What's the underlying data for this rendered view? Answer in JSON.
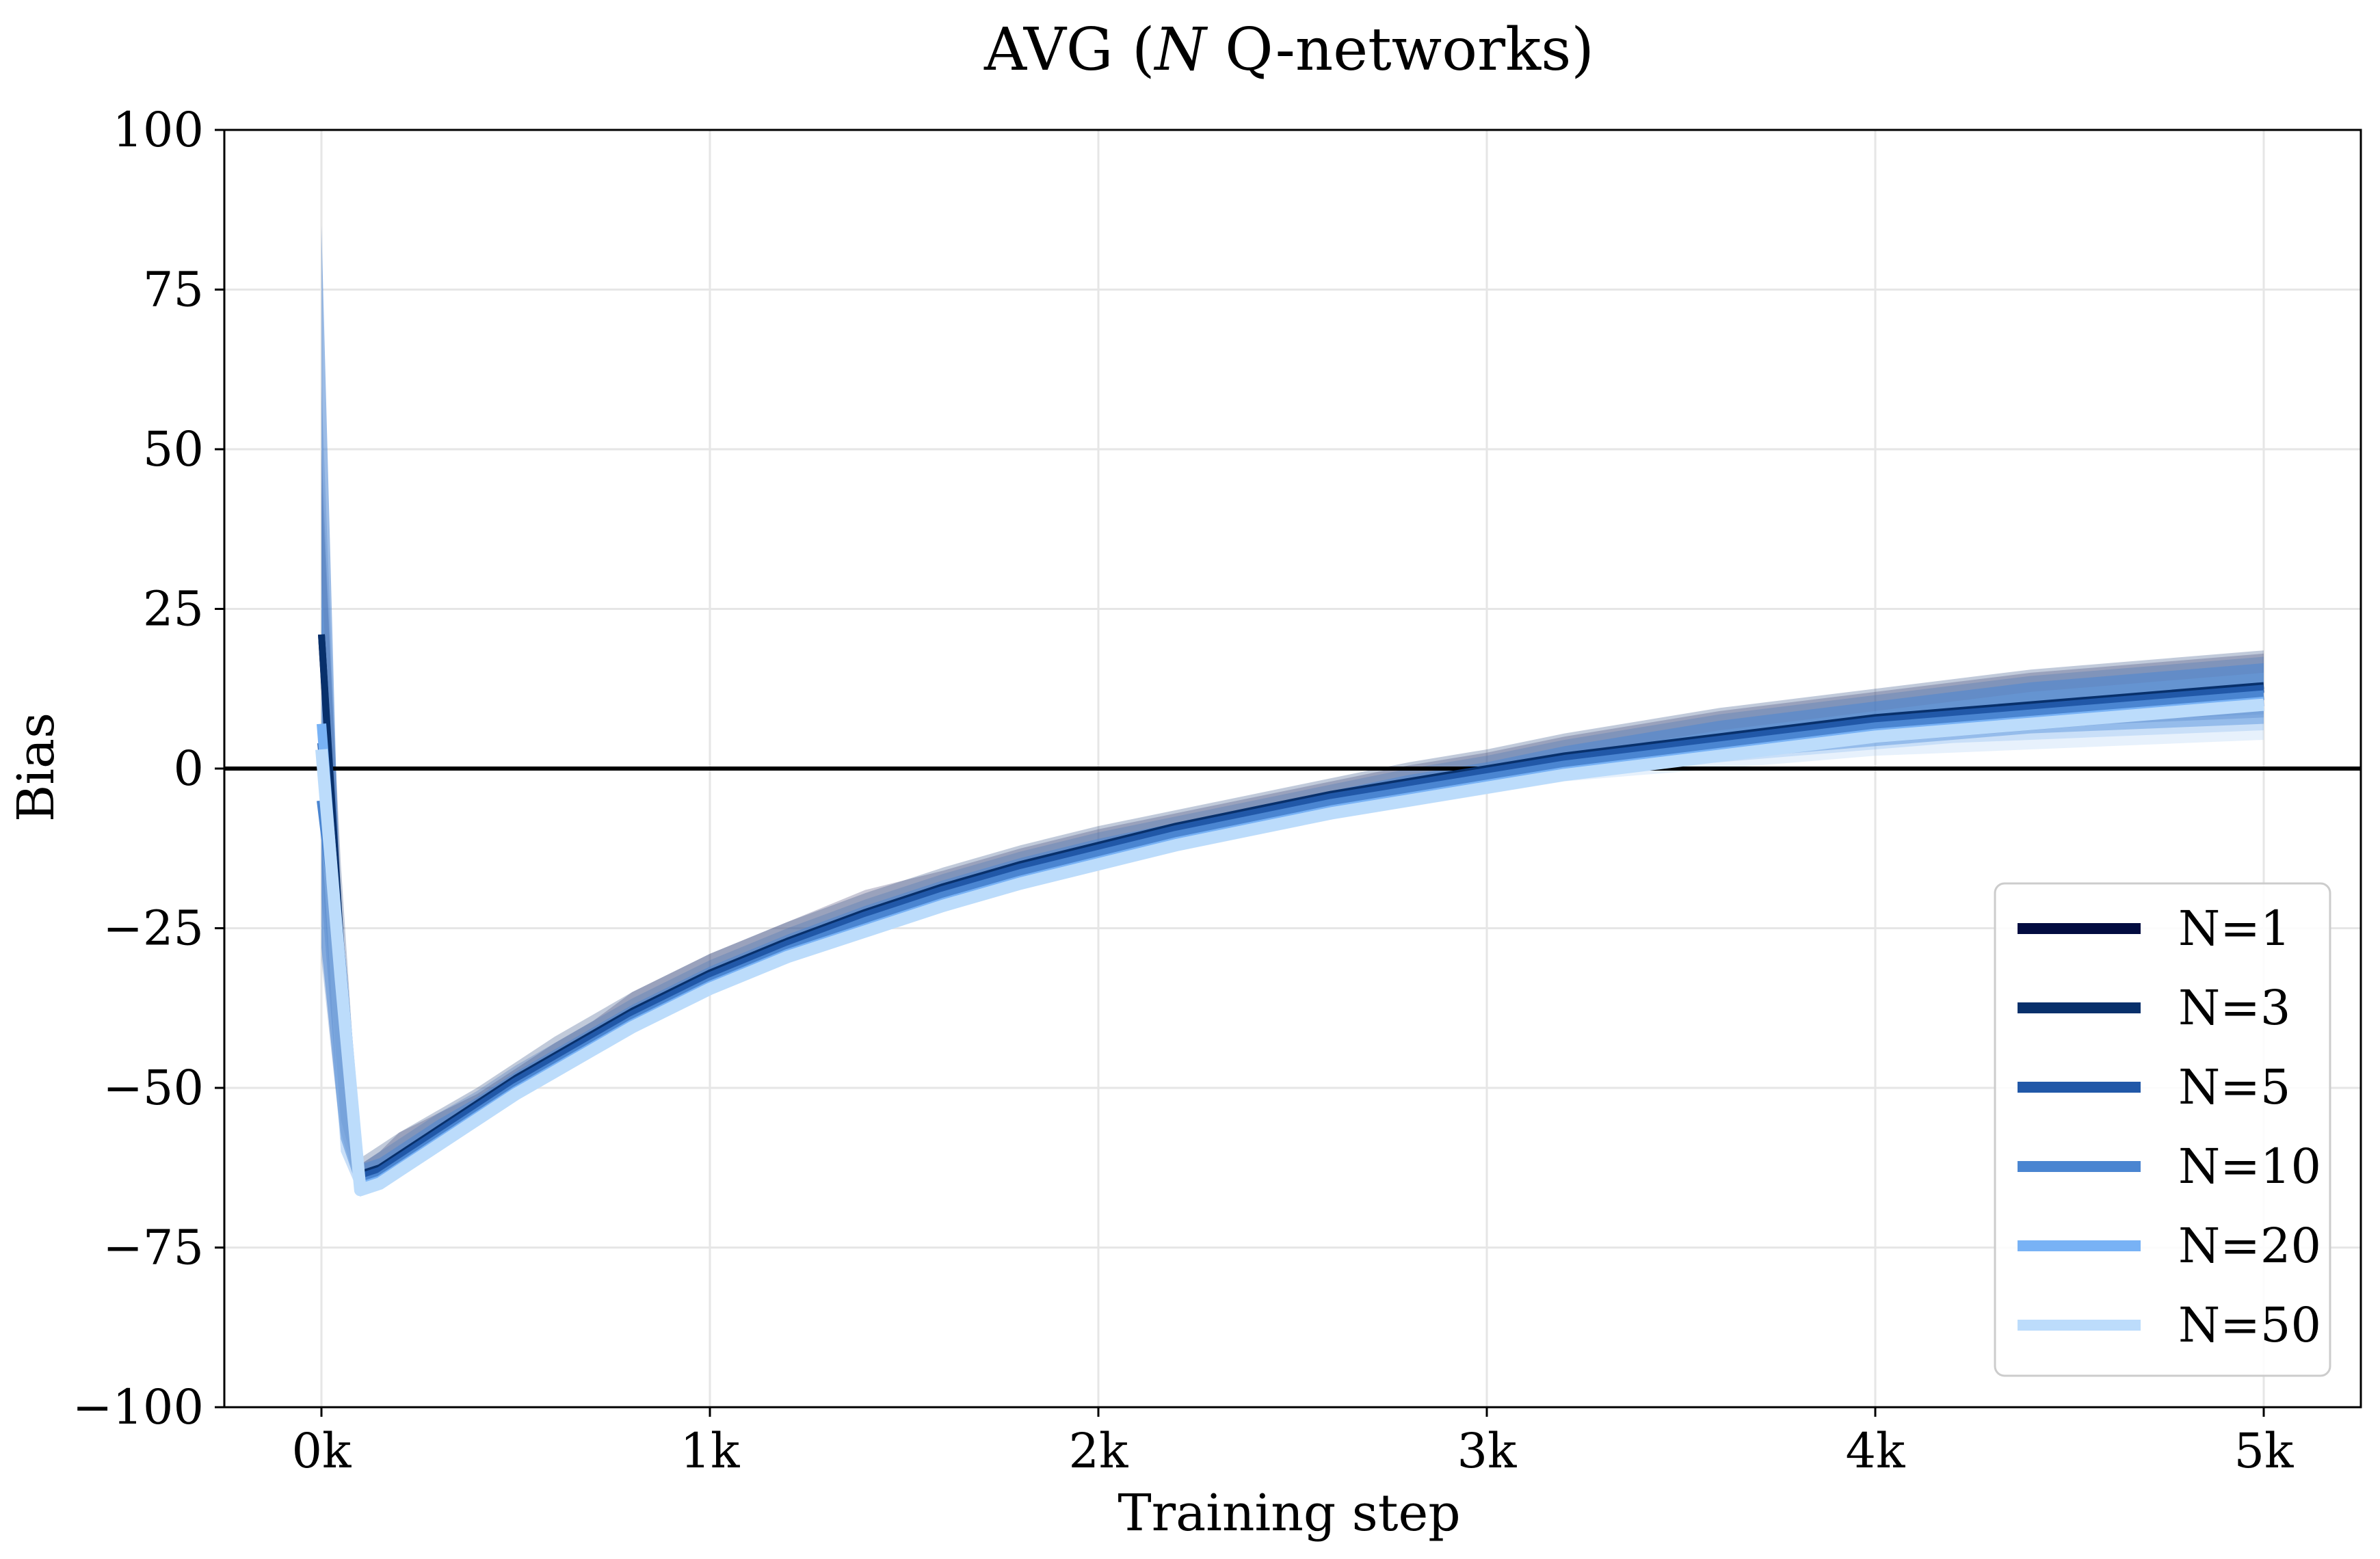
{
  "chart_data": {
    "type": "line",
    "title": "AVG (N Q-networks)",
    "xlabel": "Training step",
    "ylabel": "Bias",
    "xlim": [
      -250,
      5250
    ],
    "ylim": [
      -100,
      100
    ],
    "xticks": [
      0,
      1000,
      2000,
      3000,
      4000,
      5000
    ],
    "xtick_labels": [
      "0k",
      "1k",
      "2k",
      "3k",
      "4k",
      "5k"
    ],
    "yticks": [
      -100,
      -75,
      -50,
      -25,
      0,
      25,
      50,
      75,
      100
    ],
    "ytick_labels": [
      "−100",
      "−75",
      "−50",
      "−25",
      "0",
      "25",
      "50",
      "75",
      "100"
    ],
    "grid": true,
    "reference_line_y": 0,
    "legend_position": "lower right",
    "x": [
      0,
      50,
      100,
      150,
      200,
      300,
      400,
      500,
      600,
      700,
      800,
      1000,
      1200,
      1400,
      1600,
      1800,
      2000,
      2200,
      2400,
      2600,
      2800,
      3000,
      3200,
      3400,
      3600,
      3800,
      4000,
      4200,
      4400,
      4600,
      4800,
      5000
    ],
    "series": [
      {
        "name": "N=1",
        "color": "#020c40",
        "values": [
          21,
          -30,
          -64,
          -63,
          -61,
          -57,
          -53,
          -49,
          -45.5,
          -42,
          -38.5,
          -32.5,
          -27.5,
          -23,
          -19,
          -15.5,
          -12.5,
          -9.5,
          -7,
          -4.5,
          -2.5,
          -0.5,
          1.5,
          3,
          4.5,
          6,
          7.5,
          8.5,
          9.5,
          10.5,
          11.5,
          12.5
        ],
        "band_low": [
          -20,
          -57,
          -67,
          -65,
          -63,
          -59,
          -55,
          -51,
          -47,
          -43.5,
          -40,
          -34,
          -29,
          -25,
          -21,
          -17.5,
          -14.5,
          -11.5,
          -9,
          -6.5,
          -4.5,
          -2.5,
          -0.5,
          1,
          2,
          3,
          4,
          5,
          6,
          7,
          7.5,
          8
        ],
        "band_high": [
          50,
          -20,
          -62,
          -60,
          -57,
          -54,
          -51,
          -47,
          -43,
          -39.5,
          -35,
          -29,
          -24,
          -19,
          -16,
          -12.5,
          -9.5,
          -7,
          -4.5,
          -2,
          0.5,
          2.5,
          5,
          7,
          9,
          10.5,
          12,
          13.5,
          15,
          16,
          17,
          18
        ]
      },
      {
        "name": "N=3",
        "color": "#08306b",
        "values": [
          21,
          -28,
          -63.5,
          -62.5,
          -60.5,
          -56.5,
          -52.5,
          -48.5,
          -45,
          -41.5,
          -38,
          -32,
          -27,
          -22.5,
          -18.5,
          -15,
          -12,
          -9,
          -6.5,
          -4,
          -2,
          0,
          2,
          3.5,
          5,
          6.5,
          8,
          9,
          10,
          11,
          12,
          13
        ],
        "band_low": [
          -15,
          -55,
          -66,
          -64,
          -62,
          -58,
          -54,
          -50,
          -46.5,
          -43,
          -39.5,
          -33.5,
          -28.5,
          -24.5,
          -20.5,
          -17,
          -14,
          -11,
          -8.5,
          -6,
          -4,
          -2,
          0,
          1.5,
          2.5,
          3.5,
          4.5,
          5.5,
          6.5,
          7.5,
          8,
          8.5
        ],
        "band_high": [
          45,
          -15,
          -61,
          -59,
          -57,
          -53.5,
          -50,
          -46,
          -42,
          -38.5,
          -35,
          -29,
          -24,
          -19.5,
          -15.5,
          -12,
          -9,
          -6.5,
          -4,
          -1.5,
          1,
          3,
          5.5,
          7.5,
          9.5,
          11,
          12.5,
          14,
          15.5,
          16.5,
          17.5,
          18.5
        ]
      },
      {
        "name": "N=5",
        "color": "#2158a8",
        "values": [
          4,
          -29,
          -64,
          -63,
          -61,
          -57,
          -53,
          -49,
          -45.5,
          -42,
          -38.5,
          -32.5,
          -27.5,
          -23,
          -19,
          -15.5,
          -12.5,
          -9.5,
          -7,
          -4.5,
          -2.5,
          -0.5,
          1.5,
          3,
          4.5,
          6,
          7.5,
          8.5,
          9.5,
          10.5,
          11.5,
          12.5
        ],
        "band_low": [
          -30,
          -58,
          -67,
          -65,
          -63,
          -59,
          -55,
          -51,
          -47,
          -43.5,
          -40,
          -34,
          -29,
          -25,
          -21,
          -17.5,
          -14.5,
          -11.5,
          -9,
          -6.5,
          -4.5,
          -2.5,
          -0.5,
          1,
          2,
          3,
          4,
          5,
          6,
          7,
          7.5,
          8
        ],
        "band_high": [
          60,
          -20,
          -62,
          -60,
          -58,
          -54,
          -50.5,
          -46.5,
          -43,
          -39.5,
          -36,
          -30,
          -25,
          -20.5,
          -16.5,
          -13,
          -10,
          -7.5,
          -5,
          -2.5,
          0,
          2,
          4.5,
          6.5,
          8.5,
          10,
          11.5,
          13,
          14.5,
          15.5,
          16.5,
          17.5
        ]
      },
      {
        "name": "N=10",
        "color": "#4a85d1",
        "values": [
          -5,
          -30,
          -65,
          -64,
          -62,
          -58,
          -54,
          -50,
          -46.5,
          -43,
          -39.5,
          -33.5,
          -28.5,
          -24,
          -20,
          -16.5,
          -13.5,
          -10.5,
          -8,
          -5.5,
          -3.5,
          -1.5,
          0.5,
          2,
          3.5,
          5,
          6.5,
          7.5,
          8.5,
          9.5,
          10.5,
          11.5
        ],
        "band_low": [
          -28,
          -58,
          -67,
          -65,
          -63,
          -59,
          -55,
          -51,
          -47.5,
          -44,
          -40.5,
          -34.5,
          -29.5,
          -25.5,
          -21.5,
          -18,
          -15,
          -12,
          -9.5,
          -7,
          -5,
          -3,
          -1,
          0.5,
          1.5,
          2.5,
          3.5,
          4.5,
          5.5,
          6,
          6.5,
          7
        ],
        "band_high": [
          85,
          -28,
          -62,
          -61,
          -59,
          -55,
          -51.5,
          -47.5,
          -44,
          -40.5,
          -37,
          -31,
          -26,
          -21.5,
          -17.5,
          -14,
          -11,
          -8.5,
          -6,
          -3.5,
          -1,
          1,
          3.5,
          5.5,
          7.5,
          9,
          10.5,
          12,
          13.5,
          14.5,
          15.5,
          16.5
        ]
      },
      {
        "name": "N=20",
        "color": "#78b2f5",
        "values": [
          7,
          -32,
          -65.5,
          -64.5,
          -62.5,
          -58.5,
          -54.5,
          -50.5,
          -47,
          -43.5,
          -40,
          -34,
          -29,
          -25,
          -21,
          -17.5,
          -14.5,
          -11.5,
          -9,
          -6.5,
          -4.5,
          -2.5,
          -0.5,
          1,
          2.5,
          4,
          5.5,
          6.5,
          7.5,
          8.5,
          9.5,
          10.5
        ],
        "band_low": [
          -20,
          -60,
          -67,
          -65.5,
          -63.5,
          -59.5,
          -55.5,
          -51.5,
          -48,
          -44.5,
          -41,
          -35,
          -30,
          -26,
          -22,
          -18.5,
          -15.5,
          -12.5,
          -10,
          -7.5,
          -5.5,
          -3.5,
          -1.5,
          0,
          1,
          2,
          3,
          4,
          4.5,
          5,
          5.5,
          6
        ],
        "band_high": [
          30,
          -25,
          -63,
          -62,
          -60,
          -56,
          -52,
          -48.5,
          -45,
          -41.5,
          -38,
          -32,
          -27,
          -23,
          -19,
          -15.5,
          -12.5,
          -10,
          -7.5,
          -5,
          -2.5,
          -0.5,
          2,
          4,
          6,
          7.5,
          9,
          10.5,
          12,
          13,
          14,
          15
        ]
      },
      {
        "name": "N=50",
        "color": "#bcdcfb",
        "values": [
          3,
          -33,
          -66,
          -65,
          -63,
          -59,
          -55,
          -51,
          -47.5,
          -44,
          -40.5,
          -34.5,
          -29.5,
          -25.5,
          -21.5,
          -18,
          -15,
          -12,
          -9.5,
          -7,
          -5,
          -3,
          -1,
          0.5,
          2,
          3.5,
          5,
          6,
          7,
          8,
          9,
          10
        ],
        "band_low": [
          -10,
          -60,
          -67,
          -66,
          -64,
          -60,
          -56,
          -52,
          -48.5,
          -45,
          -41.5,
          -35.5,
          -30.5,
          -26.5,
          -22.5,
          -19,
          -16,
          -13,
          -10.5,
          -8,
          -6,
          -4,
          -2,
          -1,
          0,
          1,
          2,
          2.5,
          3,
          3.5,
          4,
          4.5
        ],
        "band_high": [
          15,
          -28,
          -64,
          -63,
          -61,
          -57,
          -53,
          -49,
          -45.5,
          -42,
          -38.5,
          -32.5,
          -27.5,
          -23.5,
          -19.5,
          -16,
          -13,
          -10.5,
          -8,
          -5.5,
          -3,
          -1,
          1.5,
          3,
          4.5,
          6,
          7.5,
          8.5,
          9.5,
          10.5,
          11.5,
          12.5
        ]
      }
    ]
  }
}
